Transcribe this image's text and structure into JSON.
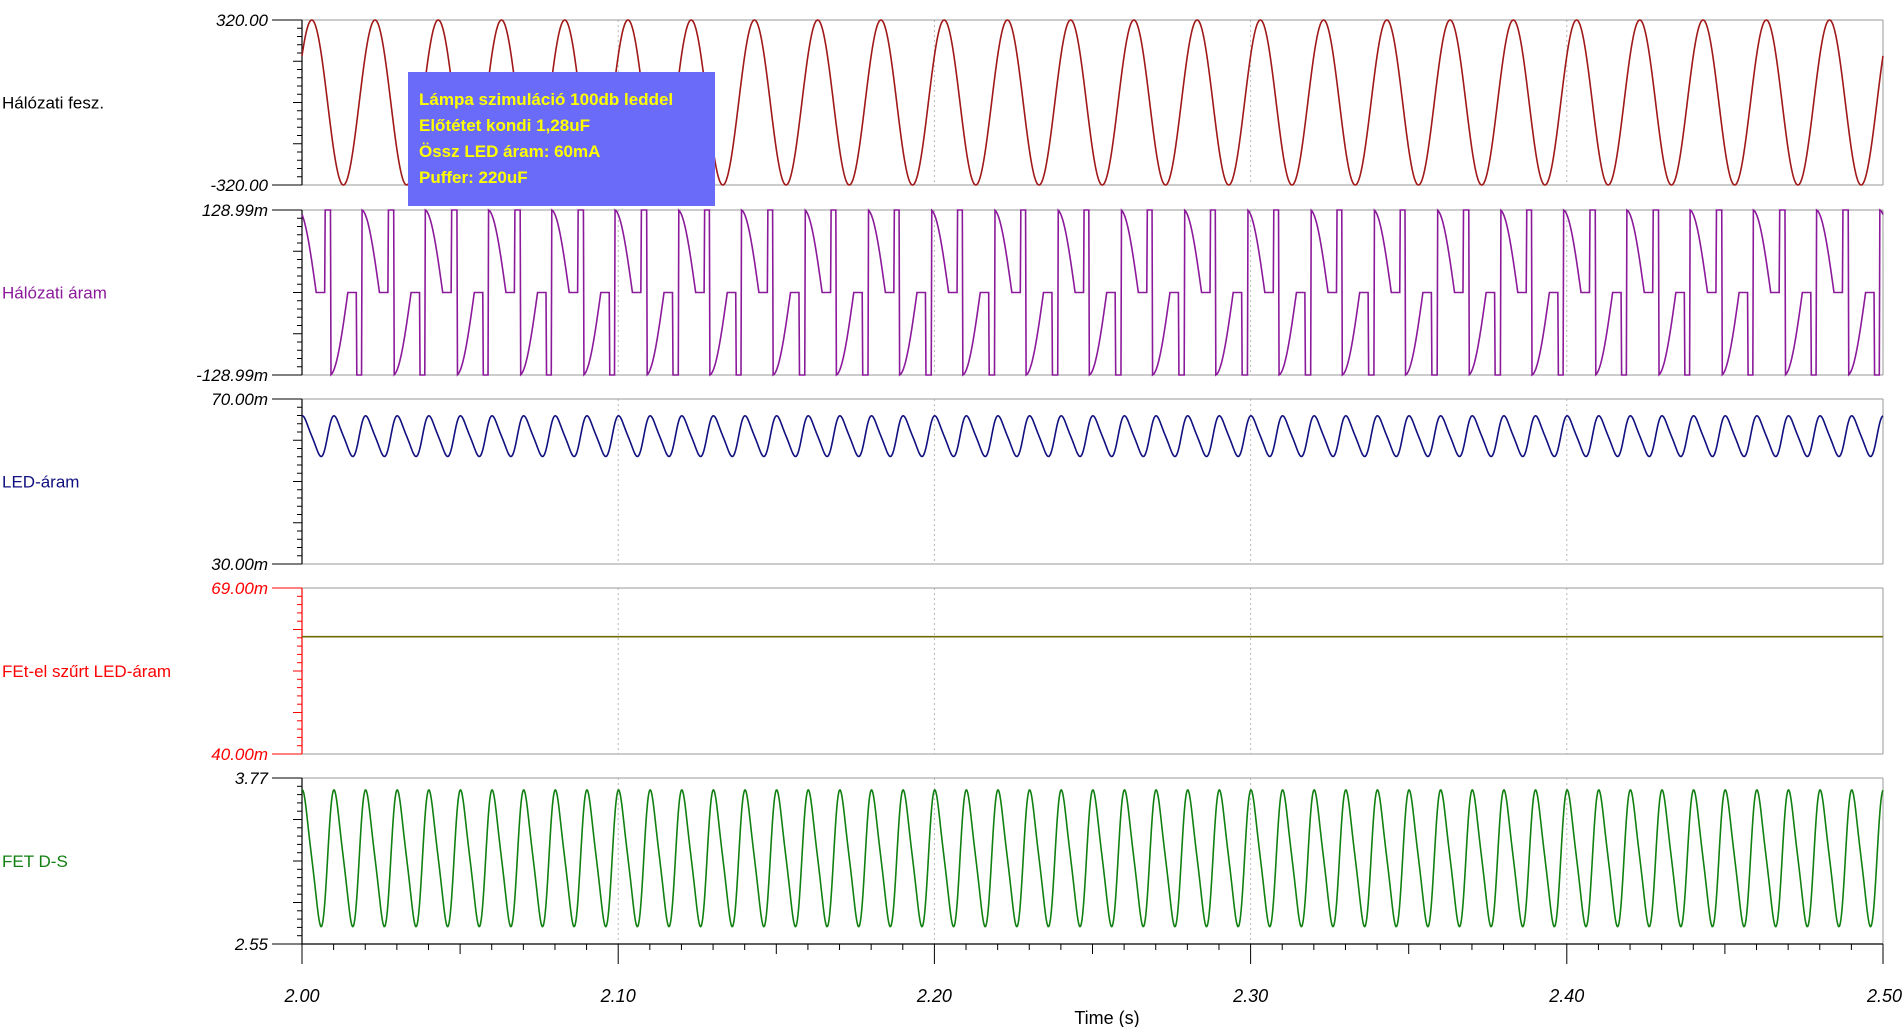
{
  "chart_data": {
    "type": "line",
    "x_axis": {
      "label": "Time (s)",
      "range": [
        2.0,
        2.5
      ],
      "ticks": [
        2.0,
        2.1,
        2.2,
        2.3,
        2.4,
        2.5
      ],
      "tick_labels": [
        "2.00",
        "2.10",
        "2.20",
        "2.30",
        "2.40",
        "2.50"
      ]
    },
    "grid": "dotted vertical lines at major ticks",
    "annotation": {
      "lines": [
        "Lámpa szimuláció 100db leddel",
        "Előtétet kondi 1,28uF",
        "Össz LED áram: 60mA",
        "Puffer: 220uF"
      ],
      "background": "#6b6bfa",
      "text_color": "#ffff00"
    },
    "series": [
      {
        "name": "Hálózati fesz.",
        "color": "#a01818",
        "label_color": "#000000",
        "ylim_labels": [
          "320.00",
          "-320.00"
        ],
        "ylim": [
          -320,
          320
        ],
        "waveform": "sine",
        "frequency_hz": 50,
        "min": -320,
        "max": 320
      },
      {
        "name": "Hálózati áram",
        "color": "#8b1a9b",
        "label_color": "#8b1a9b",
        "ylim_labels": [
          "128.99m",
          "-128.99m"
        ],
        "ylim": [
          -0.12899,
          0.12899
        ],
        "waveform": "capacitive-dropper current (step to peak, decay, flat zero segment)",
        "frequency_hz": 50,
        "min": -0.12899,
        "max": 0.12899
      },
      {
        "name": "LED-áram",
        "color": "#101080",
        "label_color": "#101080",
        "ylim_labels": [
          "70.00m",
          "30.00m"
        ],
        "ylim": [
          0.03,
          0.07
        ],
        "waveform": "ripple",
        "frequency_hz": 100,
        "min": 0.0555,
        "max": 0.0665
      },
      {
        "name": "FEt-el szűrt LED-áram",
        "color": "#6b6b00",
        "label_color": "#ff0000",
        "ylim_labels": [
          "69.00m",
          "40.00m"
        ],
        "ylim": [
          0.04,
          0.069
        ],
        "waveform": "dc",
        "value": 0.0605
      },
      {
        "name": "FET D-S",
        "color": "#108010",
        "label_color": "#108010",
        "ylim_labels": [
          "3.77",
          "2.55"
        ],
        "ylim": [
          2.55,
          3.77
        ],
        "waveform": "ripple",
        "frequency_hz": 100,
        "min": 2.62,
        "max": 3.74
      }
    ]
  }
}
